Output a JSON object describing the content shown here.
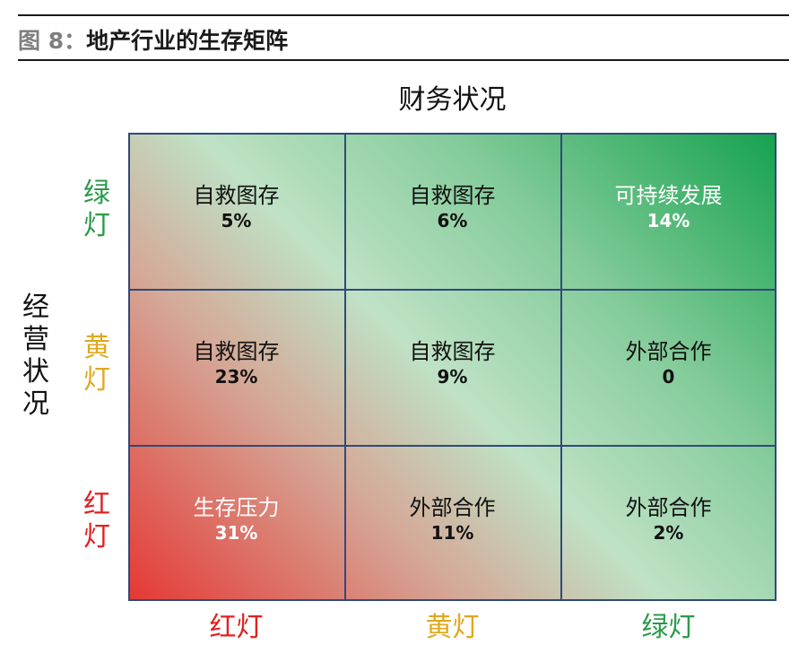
{
  "header": {
    "figure_label": "图 8：",
    "figure_title": "地产行业的生存矩阵"
  },
  "axes": {
    "top": "财务状况",
    "left": "经营状况"
  },
  "rows": [
    {
      "label": "绿灯",
      "color": "#2a9a4a"
    },
    {
      "label": "黄灯",
      "color": "#e0a81c"
    },
    {
      "label": "红灯",
      "color": "#e02020"
    }
  ],
  "columns": [
    {
      "label": "红灯",
      "color": "#e02020"
    },
    {
      "label": "黄灯",
      "color": "#e0a81c"
    },
    {
      "label": "绿灯",
      "color": "#2a9a4a"
    }
  ],
  "chart_data": {
    "type": "table",
    "title": "地产行业的生存矩阵",
    "xlabel": "财务状况",
    "ylabel": "经营状况",
    "x_categories": [
      "红灯",
      "黄灯",
      "绿灯"
    ],
    "y_categories": [
      "绿灯",
      "黄灯",
      "红灯"
    ],
    "cells": [
      [
        {
          "name": "自救图存",
          "value": "5%",
          "text_color": "#111111"
        },
        {
          "name": "自救图存",
          "value": "6%",
          "text_color": "#111111"
        },
        {
          "name": "可持续发展",
          "value": "14%",
          "text_color": "#ffffff"
        }
      ],
      [
        {
          "name": "自救图存",
          "value": "23%",
          "text_color": "#111111"
        },
        {
          "name": "自救图存",
          "value": "9%",
          "text_color": "#111111"
        },
        {
          "name": "外部合作",
          "value": "0",
          "text_color": "#111111"
        }
      ],
      [
        {
          "name": "生存压力",
          "value": "31%",
          "text_color": "#ffffff"
        },
        {
          "name": "外部合作",
          "value": "11%",
          "text_color": "#111111"
        },
        {
          "name": "外部合作",
          "value": "2%",
          "text_color": "#111111"
        }
      ]
    ]
  }
}
